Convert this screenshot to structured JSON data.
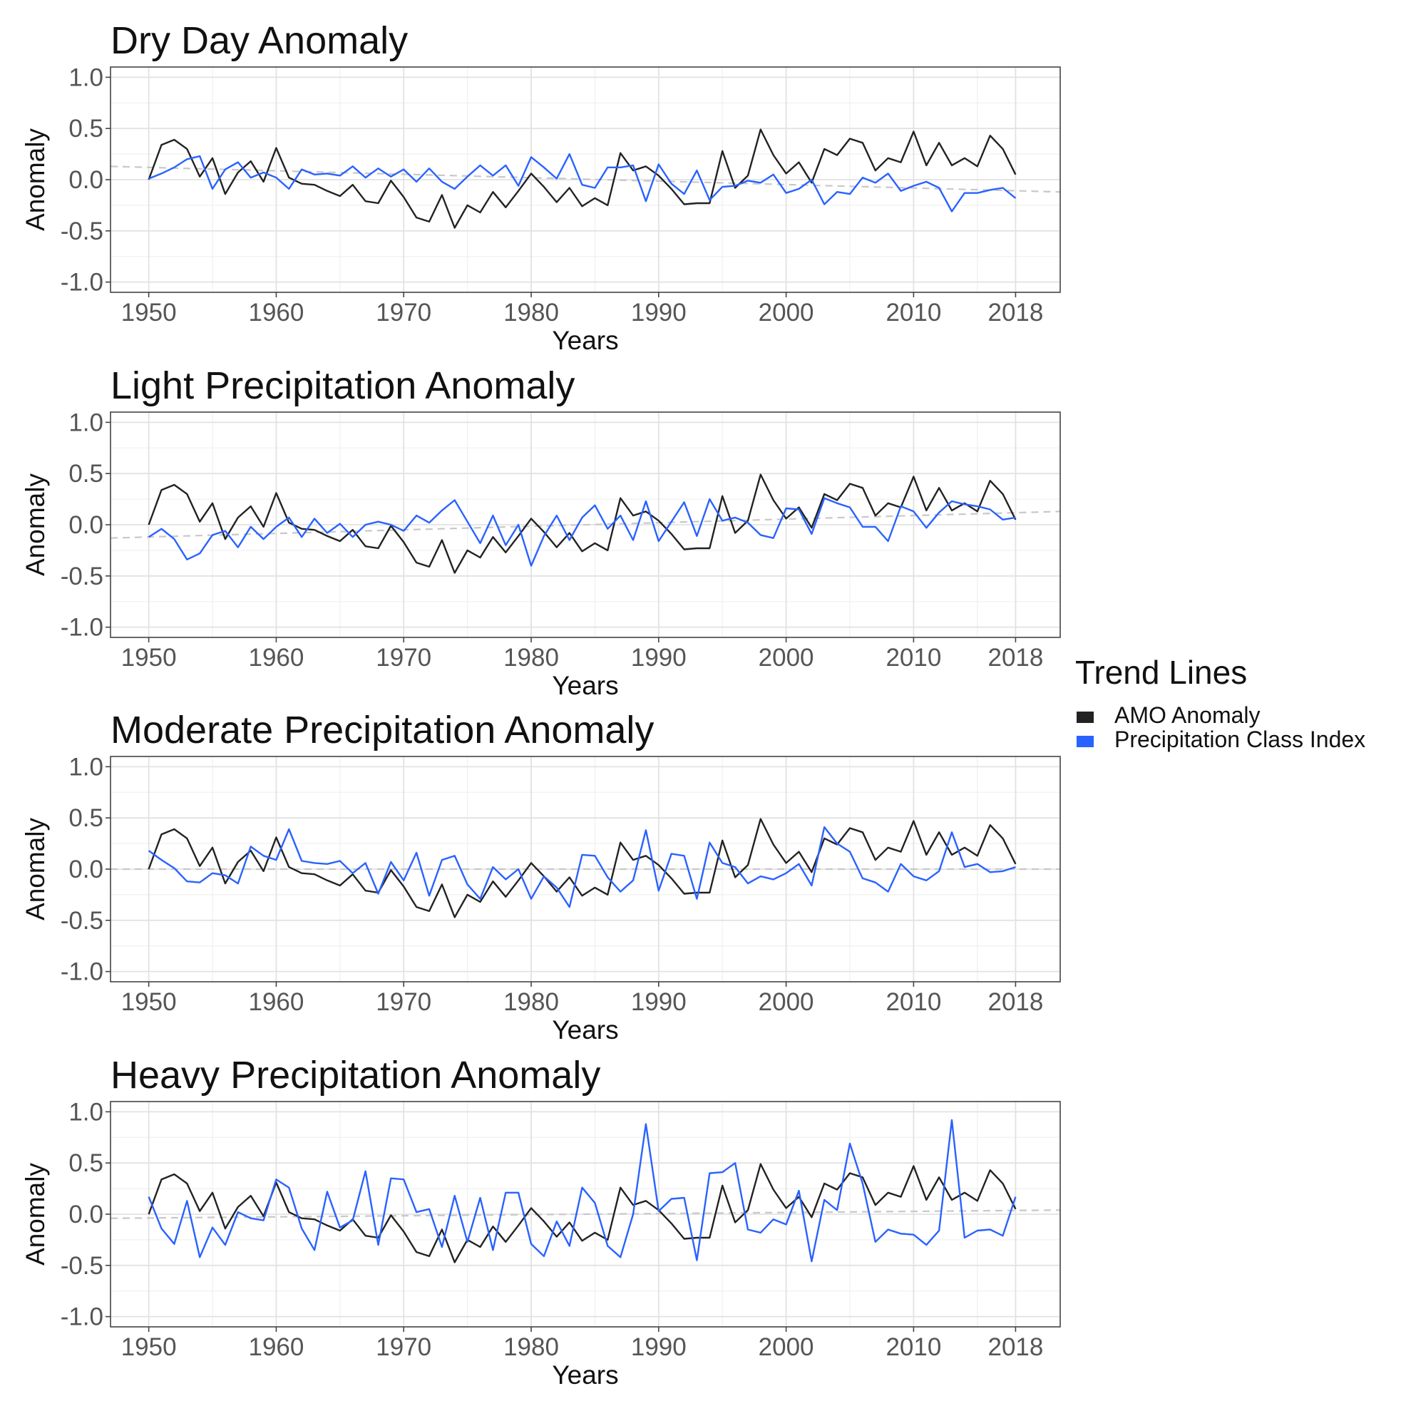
{
  "chart_data": {
    "type": "line",
    "shared_axes": {
      "x": [
        1950,
        1951,
        1952,
        1953,
        1954,
        1955,
        1956,
        1957,
        1958,
        1959,
        1960,
        1961,
        1962,
        1963,
        1964,
        1965,
        1966,
        1967,
        1968,
        1969,
        1970,
        1971,
        1972,
        1973,
        1974,
        1975,
        1976,
        1977,
        1978,
        1979,
        1980,
        1981,
        1982,
        1983,
        1984,
        1985,
        1986,
        1987,
        1988,
        1989,
        1990,
        1991,
        1992,
        1993,
        1994,
        1995,
        1996,
        1997,
        1998,
        1999,
        2000,
        2001,
        2002,
        2003,
        2004,
        2005,
        2006,
        2007,
        2008,
        2009,
        2010,
        2011,
        2012,
        2013,
        2014,
        2015,
        2016,
        2017,
        2018
      ],
      "xlim": [
        1947,
        2021.5
      ],
      "ylim": [
        -1.1,
        1.1
      ],
      "x_ticks": [
        1950,
        1960,
        1970,
        1980,
        1990,
        2000,
        2010,
        2018
      ],
      "x_tick_labels": [
        "1950",
        "1960",
        "1970",
        "1980",
        "1990",
        "2000",
        "2010",
        "2018"
      ],
      "y_ticks": [
        1.0,
        0.5,
        0.0,
        -0.5,
        -1.0
      ],
      "y_tick_labels": [
        "1.0",
        "0.5",
        "0.0",
        "-0.5",
        "-1.0"
      ],
      "xlabel": "Years",
      "ylabel": "Anomaly"
    },
    "legend": {
      "title": "Trend Lines",
      "entries": [
        {
          "label": "AMO Anomaly",
          "color": "#222222"
        },
        {
          "label": "Precipitation Class Index",
          "color": "#2962ff"
        }
      ]
    },
    "panels": [
      {
        "title": "Dry Day Anomaly",
        "series": [
          {
            "name": "AMO Anomaly",
            "color": "#222222",
            "values": [
              0.0,
              0.34,
              0.39,
              0.3,
              0.03,
              0.21,
              -0.14,
              0.07,
              0.18,
              -0.02,
              0.31,
              0.02,
              -0.04,
              -0.05,
              -0.11,
              -0.16,
              -0.05,
              -0.21,
              -0.23,
              -0.01,
              -0.17,
              -0.37,
              -0.41,
              -0.15,
              -0.47,
              -0.25,
              -0.32,
              -0.12,
              -0.27,
              -0.11,
              0.06,
              -0.07,
              -0.22,
              -0.08,
              -0.26,
              -0.18,
              -0.25,
              0.26,
              0.09,
              0.13,
              0.04,
              -0.09,
              -0.24,
              -0.23,
              -0.23,
              0.28,
              -0.08,
              0.04,
              0.49,
              0.24,
              0.06,
              0.17,
              -0.03,
              0.3,
              0.24,
              0.4,
              0.36,
              0.09,
              0.21,
              0.17,
              0.47,
              0.14,
              0.36,
              0.14,
              0.21,
              0.13,
              0.43,
              0.3,
              0.05
            ]
          },
          {
            "name": "Precipitation Class Index",
            "color": "#2962ff",
            "values": [
              0.01,
              0.06,
              0.12,
              0.2,
              0.23,
              -0.09,
              0.1,
              0.17,
              0.02,
              0.07,
              0.02,
              -0.09,
              0.1,
              0.05,
              0.06,
              0.04,
              0.13,
              0.02,
              0.11,
              0.03,
              0.1,
              -0.02,
              0.11,
              -0.02,
              -0.09,
              0.03,
              0.14,
              0.04,
              0.14,
              -0.06,
              0.22,
              0.12,
              0.01,
              0.25,
              -0.05,
              -0.08,
              0.12,
              0.12,
              0.14,
              -0.21,
              0.15,
              -0.04,
              -0.14,
              0.09,
              -0.2,
              -0.07,
              -0.06,
              -0.01,
              -0.03,
              0.05,
              -0.13,
              -0.09,
              0.0,
              -0.24,
              -0.12,
              -0.14,
              0.02,
              -0.03,
              0.06,
              -0.11,
              -0.06,
              -0.02,
              -0.08,
              -0.31,
              -0.13,
              -0.13,
              -0.1,
              -0.08,
              -0.18
            ]
          }
        ],
        "trend_line": {
          "start": [
            1947,
            0.13
          ],
          "end": [
            2021.5,
            -0.12
          ]
        }
      },
      {
        "title": "Light Precipitation Anomaly",
        "series": [
          {
            "name": "AMO Anomaly",
            "color": "#222222",
            "values": [
              0.0,
              0.34,
              0.39,
              0.3,
              0.03,
              0.21,
              -0.14,
              0.07,
              0.18,
              -0.02,
              0.31,
              0.02,
              -0.04,
              -0.05,
              -0.11,
              -0.16,
              -0.05,
              -0.21,
              -0.23,
              -0.01,
              -0.17,
              -0.37,
              -0.41,
              -0.15,
              -0.47,
              -0.25,
              -0.32,
              -0.12,
              -0.27,
              -0.11,
              0.06,
              -0.07,
              -0.22,
              -0.08,
              -0.26,
              -0.18,
              -0.25,
              0.26,
              0.09,
              0.13,
              0.04,
              -0.09,
              -0.24,
              -0.23,
              -0.23,
              0.28,
              -0.08,
              0.04,
              0.49,
              0.24,
              0.06,
              0.17,
              -0.03,
              0.3,
              0.24,
              0.4,
              0.36,
              0.09,
              0.21,
              0.17,
              0.47,
              0.14,
              0.36,
              0.14,
              0.21,
              0.13,
              0.43,
              0.3,
              0.05
            ]
          },
          {
            "name": "Precipitation Class Index",
            "color": "#2962ff",
            "values": [
              -0.12,
              -0.04,
              -0.14,
              -0.34,
              -0.28,
              -0.1,
              -0.06,
              -0.22,
              -0.02,
              -0.14,
              -0.02,
              0.07,
              -0.12,
              0.06,
              -0.08,
              0.01,
              -0.12,
              0.0,
              0.03,
              0.0,
              -0.06,
              0.09,
              0.02,
              0.14,
              0.24,
              0.03,
              -0.18,
              0.09,
              -0.2,
              0.0,
              -0.4,
              -0.11,
              0.09,
              -0.15,
              0.07,
              0.19,
              -0.04,
              0.09,
              -0.15,
              0.23,
              -0.16,
              0.03,
              0.22,
              -0.11,
              0.25,
              0.04,
              0.07,
              0.02,
              -0.1,
              -0.13,
              0.16,
              0.15,
              -0.09,
              0.26,
              0.21,
              0.17,
              -0.02,
              -0.02,
              -0.16,
              0.18,
              0.13,
              -0.03,
              0.12,
              0.23,
              0.2,
              0.18,
              0.15,
              0.05,
              0.07
            ]
          }
        ],
        "trend_line": {
          "start": [
            1947,
            -0.13
          ],
          "end": [
            2021.5,
            0.13
          ]
        }
      },
      {
        "title": "Moderate Precipitation Anomaly",
        "series": [
          {
            "name": "AMO Anomaly",
            "color": "#222222",
            "values": [
              0.0,
              0.34,
              0.39,
              0.3,
              0.03,
              0.21,
              -0.14,
              0.07,
              0.18,
              -0.02,
              0.31,
              0.02,
              -0.04,
              -0.05,
              -0.11,
              -0.16,
              -0.05,
              -0.21,
              -0.23,
              -0.01,
              -0.17,
              -0.37,
              -0.41,
              -0.15,
              -0.47,
              -0.25,
              -0.32,
              -0.12,
              -0.27,
              -0.11,
              0.06,
              -0.07,
              -0.22,
              -0.08,
              -0.26,
              -0.18,
              -0.25,
              0.26,
              0.09,
              0.13,
              0.04,
              -0.09,
              -0.24,
              -0.23,
              -0.23,
              0.28,
              -0.08,
              0.04,
              0.49,
              0.24,
              0.06,
              0.17,
              -0.03,
              0.3,
              0.24,
              0.4,
              0.36,
              0.09,
              0.21,
              0.17,
              0.47,
              0.14,
              0.36,
              0.14,
              0.21,
              0.13,
              0.43,
              0.3,
              0.05
            ]
          },
          {
            "name": "Precipitation Class Index",
            "color": "#2962ff",
            "values": [
              0.18,
              0.09,
              0.01,
              -0.12,
              -0.13,
              -0.04,
              -0.06,
              -0.14,
              0.22,
              0.13,
              0.09,
              0.39,
              0.08,
              0.06,
              0.05,
              0.08,
              -0.04,
              0.06,
              -0.24,
              0.07,
              -0.11,
              0.16,
              -0.26,
              0.09,
              0.13,
              -0.15,
              -0.29,
              0.02,
              -0.1,
              0.0,
              -0.29,
              -0.07,
              -0.18,
              -0.37,
              0.14,
              0.13,
              -0.08,
              -0.22,
              -0.11,
              0.38,
              -0.21,
              0.15,
              0.13,
              -0.29,
              0.26,
              0.06,
              0.02,
              -0.14,
              -0.07,
              -0.1,
              -0.04,
              0.05,
              -0.16,
              0.41,
              0.25,
              0.17,
              -0.09,
              -0.13,
              -0.22,
              0.05,
              -0.07,
              -0.11,
              -0.02,
              0.36,
              0.02,
              0.05,
              -0.03,
              -0.02,
              0.02
            ]
          }
        ],
        "trend_line": {
          "start": [
            1947,
            0.0
          ],
          "end": [
            2021.5,
            0.0
          ]
        }
      },
      {
        "title": "Heavy Precipitation Anomaly",
        "series": [
          {
            "name": "AMO Anomaly",
            "color": "#222222",
            "values": [
              0.0,
              0.34,
              0.39,
              0.3,
              0.03,
              0.21,
              -0.14,
              0.07,
              0.18,
              -0.02,
              0.31,
              0.02,
              -0.04,
              -0.05,
              -0.11,
              -0.16,
              -0.05,
              -0.21,
              -0.23,
              -0.01,
              -0.17,
              -0.37,
              -0.41,
              -0.15,
              -0.47,
              -0.25,
              -0.32,
              -0.12,
              -0.27,
              -0.11,
              0.06,
              -0.07,
              -0.22,
              -0.08,
              -0.26,
              -0.18,
              -0.25,
              0.26,
              0.09,
              0.13,
              0.04,
              -0.09,
              -0.24,
              -0.23,
              -0.23,
              0.28,
              -0.08,
              0.04,
              0.49,
              0.24,
              0.06,
              0.17,
              -0.03,
              0.3,
              0.24,
              0.4,
              0.36,
              0.09,
              0.21,
              0.17,
              0.47,
              0.14,
              0.36,
              0.14,
              0.21,
              0.13,
              0.43,
              0.3,
              0.05
            ]
          },
          {
            "name": "Precipitation Class Index",
            "color": "#2962ff",
            "values": [
              0.17,
              -0.14,
              -0.29,
              0.13,
              -0.42,
              -0.13,
              -0.3,
              0.02,
              -0.04,
              -0.06,
              0.34,
              0.26,
              -0.14,
              -0.35,
              0.22,
              -0.13,
              -0.06,
              0.42,
              -0.3,
              0.35,
              0.34,
              0.02,
              0.05,
              -0.32,
              0.18,
              -0.27,
              0.16,
              -0.35,
              0.21,
              0.21,
              -0.29,
              -0.41,
              -0.07,
              -0.31,
              0.26,
              0.11,
              -0.31,
              -0.42,
              0.0,
              0.88,
              0.03,
              0.15,
              0.16,
              -0.45,
              0.4,
              0.41,
              0.5,
              -0.15,
              -0.18,
              -0.05,
              -0.1,
              0.23,
              -0.46,
              0.14,
              0.04,
              0.69,
              0.3,
              -0.27,
              -0.15,
              -0.19,
              -0.2,
              -0.3,
              -0.16,
              0.92,
              -0.23,
              -0.16,
              -0.15,
              -0.21,
              0.17
            ]
          }
        ],
        "trend_line": {
          "start": [
            1947,
            -0.04
          ],
          "end": [
            2021.5,
            0.04
          ]
        }
      }
    ]
  }
}
